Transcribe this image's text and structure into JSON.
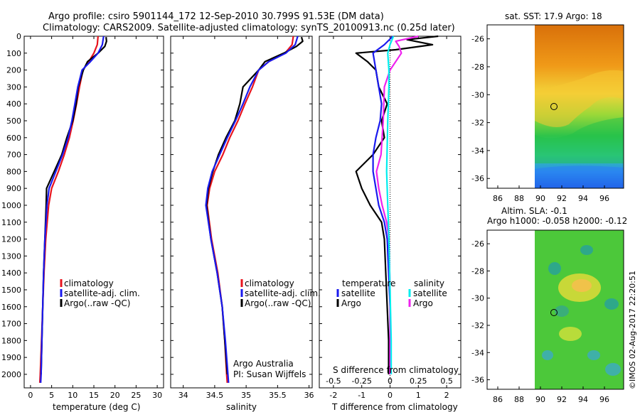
{
  "title_line1": "Argo profile: csiro 5901144_172 12-Sep-2010 30.799S 91.53E (DM data)",
  "title_line2": "Climatology: CARS2009. Satellite-adjusted climatology: synTS_20100913.nc (0.25d later)",
  "sst_title": "sat. SST: 17.9 Argo: 18",
  "sla_title1": "Altim. SLA: -0.1",
  "sla_title2": "Argo h1000: -0.058 h2000: -0.12",
  "footer": "©IMOS 02-Aug-2017 22:20:51",
  "colors": {
    "climatology": "#e8141e",
    "satellite": "#1a1aee",
    "argo": "#000000",
    "sal_satellite": "#00eeee",
    "sal_argo": "#ee22ee"
  },
  "chart_data": [
    {
      "type": "line",
      "id": "temperature",
      "xlabel": "temperature (deg C)",
      "xlim": [
        -1.5,
        31.5
      ],
      "ylim": [
        2080,
        0
      ],
      "xticks": [
        "0",
        "5",
        "10",
        "15",
        "20",
        "25",
        "30"
      ],
      "yticks": [
        "0",
        "100",
        "200",
        "300",
        "400",
        "500",
        "600",
        "700",
        "800",
        "900",
        "1000",
        "1100",
        "1200",
        "1300",
        "1400",
        "1500",
        "1600",
        "1700",
        "1800",
        "1900",
        "2000"
      ],
      "legend": [
        "climatology",
        "satellite-adj. clim.",
        "Argo(..raw -QC)"
      ],
      "series": [
        {
          "name": "climatology",
          "depth": [
            0,
            50,
            100,
            150,
            200,
            300,
            400,
            500,
            600,
            700,
            800,
            900,
            1000,
            1200,
            1400,
            1600,
            1800,
            2000,
            2050
          ],
          "values": [
            16.0,
            15.8,
            15.0,
            13.8,
            12.4,
            11.6,
            10.9,
            10.1,
            9.2,
            8.0,
            6.6,
            5.0,
            4.3,
            3.6,
            3.2,
            2.9,
            2.6,
            2.3,
            2.2
          ]
        },
        {
          "name": "satellite-adj. clim.",
          "depth": [
            0,
            50,
            100,
            150,
            200,
            300,
            400,
            500,
            600,
            700,
            800,
            900,
            1000,
            1200,
            1400,
            1600,
            1800,
            2000,
            2050
          ],
          "values": [
            17.3,
            17.0,
            16.0,
            14.2,
            12.2,
            11.2,
            10.5,
            9.8,
            8.9,
            7.6,
            6.0,
            4.4,
            3.9,
            3.4,
            3.1,
            2.9,
            2.7,
            2.5,
            2.4
          ]
        },
        {
          "name": "Argo(..raw -QC)",
          "depth": [
            5,
            30,
            60,
            100,
            150,
            200,
            300,
            400,
            500,
            600,
            700,
            800,
            900,
            1000,
            1200,
            1400,
            1600,
            1800,
            2000
          ],
          "values": [
            17.9,
            18.0,
            17.6,
            16.0,
            13.5,
            12.5,
            11.3,
            10.8,
            10.0,
            8.6,
            7.4,
            5.6,
            3.8,
            3.7,
            3.4,
            3.1,
            2.9,
            2.7,
            2.5
          ]
        }
      ]
    },
    {
      "type": "line",
      "id": "salinity",
      "xlabel": "salinity",
      "xlim": [
        33.8,
        36.05
      ],
      "ylim": [
        2080,
        0
      ],
      "xticks": [
        "34",
        "34.5",
        "35",
        "35.5",
        "36"
      ],
      "legend": [
        "climatology",
        "satellite-adj. clim.",
        "Argo(..raw -QC)"
      ],
      "annotation": [
        "Argo Australia",
        "PI: Susan Wijffels"
      ],
      "series": [
        {
          "name": "climatology",
          "depth": [
            0,
            50,
            100,
            150,
            200,
            300,
            400,
            500,
            600,
            700,
            800,
            900,
            1000,
            1200,
            1400,
            1600,
            1800,
            2000,
            2050
          ],
          "values": [
            35.75,
            35.73,
            35.62,
            35.36,
            35.2,
            35.1,
            34.98,
            34.87,
            34.74,
            34.63,
            34.5,
            34.42,
            34.38,
            34.45,
            34.55,
            34.62,
            34.66,
            34.69,
            34.7
          ]
        },
        {
          "name": "satellite-adj. clim.",
          "depth": [
            0,
            50,
            100,
            150,
            200,
            300,
            400,
            500,
            600,
            700,
            800,
            900,
            1000,
            1200,
            1400,
            1600,
            1800,
            2000,
            2050
          ],
          "values": [
            35.82,
            35.78,
            35.63,
            35.36,
            35.2,
            35.06,
            34.95,
            34.83,
            34.7,
            34.58,
            34.46,
            34.39,
            34.36,
            34.44,
            34.54,
            34.62,
            34.67,
            34.71,
            34.72
          ]
        },
        {
          "name": "Argo(..raw -QC)",
          "depth": [
            5,
            30,
            60,
            100,
            150,
            200,
            300,
            400,
            500,
            600,
            700,
            800,
            900,
            1000,
            1200,
            1400,
            1600,
            1800,
            2000
          ],
          "values": [
            35.88,
            35.9,
            35.8,
            35.6,
            35.3,
            35.2,
            34.95,
            34.9,
            34.82,
            34.68,
            34.56,
            34.47,
            34.4,
            34.37,
            34.44,
            34.54,
            34.62,
            34.66,
            34.7
          ]
        }
      ]
    },
    {
      "type": "line",
      "id": "difference",
      "xlabel": "T difference from climatology",
      "xlabel_top": "S difference from climatology",
      "xlim": [
        -2.5,
        2.5
      ],
      "ylim": [
        2080,
        0
      ],
      "xticks": [
        "-2",
        "-1",
        "0",
        "1",
        "2"
      ],
      "xticks_s": [
        "-0.5",
        "-0.25",
        "0",
        "0.25",
        "0.5"
      ],
      "legend_left_title": "temperature",
      "legend_right_title": "salinity",
      "legend": [
        "satellite",
        "Argo",
        "satellite",
        "Argo"
      ],
      "series": [
        {
          "name": "temperature satellite",
          "depth": [
            0,
            50,
            100,
            200,
            300,
            400,
            500,
            600,
            700,
            800,
            900,
            1000,
            1100,
            1200,
            1400,
            1600,
            1800,
            2000
          ],
          "values": [
            0.1,
            -0.2,
            -0.6,
            -0.5,
            -0.4,
            -0.3,
            -0.35,
            -0.5,
            -0.6,
            -0.6,
            -0.5,
            -0.4,
            -0.2,
            -0.1,
            -0.05,
            0.0,
            0.0,
            0.0
          ]
        },
        {
          "name": "temperature Argo",
          "depth": [
            0,
            20,
            50,
            80,
            100,
            150,
            200,
            300,
            400,
            500,
            600,
            700,
            800,
            900,
            1000,
            1100,
            1200,
            1400,
            1600,
            1800,
            2000
          ],
          "values": [
            1.7,
            0.6,
            1.5,
            0.2,
            -1.2,
            -0.8,
            -0.5,
            -0.4,
            -0.1,
            -0.3,
            -0.2,
            -0.6,
            -1.2,
            -1.0,
            -0.7,
            -0.3,
            -0.2,
            -0.15,
            -0.1,
            -0.05,
            -0.05
          ]
        },
        {
          "name": "salinity satellite",
          "depth": [
            0,
            50,
            100,
            200,
            300,
            500,
            800,
            1000,
            1200,
            1500,
            1800,
            2000
          ],
          "values": [
            0.03,
            0.0,
            -0.02,
            -0.01,
            -0.01,
            -0.02,
            -0.03,
            -0.02,
            -0.01,
            0.0,
            0.01,
            0.01
          ]
        },
        {
          "name": "salinity Argo",
          "depth": [
            0,
            30,
            60,
            100,
            150,
            200,
            300,
            500,
            700,
            800,
            900,
            1000,
            1100,
            1200,
            1500,
            1800,
            2000
          ],
          "values": [
            0.25,
            0.05,
            0.08,
            0.1,
            0.05,
            0.0,
            -0.05,
            -0.06,
            -0.08,
            -0.12,
            -0.1,
            -0.07,
            -0.03,
            -0.01,
            0.0,
            0.0,
            0.0
          ]
        }
      ]
    },
    {
      "type": "heatmap",
      "id": "sst-map",
      "title": "sat. SST: 17.9 Argo: 18",
      "xticks": [
        "86",
        "88",
        "90",
        "92",
        "94",
        "96"
      ],
      "yticks": [
        "-26",
        "-28",
        "-30",
        "-32",
        "-34",
        "-36"
      ],
      "xlim": [
        85,
        97.8
      ],
      "ylim": [
        -36.7,
        -25
      ],
      "argo_position": [
        91.53,
        -30.8
      ],
      "data_lon_min": 90
    },
    {
      "type": "heatmap",
      "id": "sla-map",
      "title": "Altim. SLA: -0.1",
      "xticks": [
        "86",
        "88",
        "90",
        "92",
        "94",
        "96"
      ],
      "yticks": [
        "-26",
        "-28",
        "-30",
        "-32",
        "-34",
        "-36"
      ],
      "xlim": [
        85,
        97.8
      ],
      "ylim": [
        -36.7,
        -25
      ],
      "argo_position": [
        91.53,
        -30.8
      ],
      "data_lon_min": 90
    }
  ]
}
